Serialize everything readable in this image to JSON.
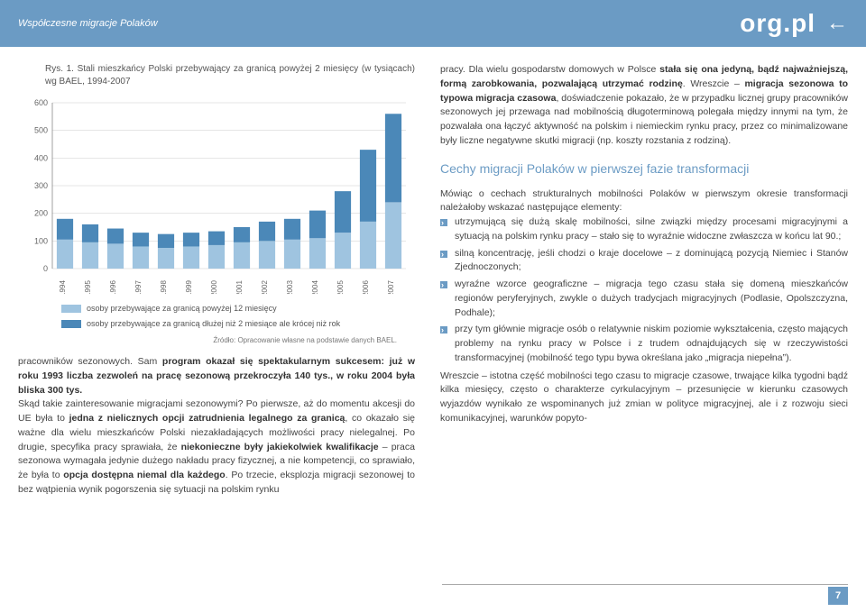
{
  "header": {
    "left": "Współczesne migracje Polaków",
    "logo": "org.pl",
    "arrow": "←"
  },
  "figure": {
    "caption_prefix": "Rys. 1.",
    "caption": "Stali mieszkańcy Polski przebywający za granicą powyżej 2 miesięcy (w tysiącach) wg BAEL, 1994-2007",
    "source": "Źródło: Opracowanie własne na podstawie danych BAEL."
  },
  "chart": {
    "type": "stacked-bar",
    "ylim": [
      0,
      600
    ],
    "ytick_step": 100,
    "yticks": [
      0,
      100,
      200,
      300,
      400,
      500,
      600
    ],
    "years": [
      "1994",
      "1995",
      "1996",
      "1997",
      "1998",
      "1999",
      "2000",
      "2001",
      "2002",
      "2003",
      "2004",
      "2005",
      "2006",
      "2007"
    ],
    "series_bottom": {
      "label": "osoby przebywające za granicą powyżej 12 miesięcy",
      "color": "#9fc4e0"
    },
    "series_top": {
      "label": "osoby przebywające za granicą dłużej niż 2 miesiące ale krócej niż rok",
      "color": "#4b88b8"
    },
    "values_bottom": [
      105,
      95,
      90,
      80,
      75,
      80,
      85,
      95,
      100,
      105,
      110,
      130,
      170,
      240
    ],
    "values_top": [
      75,
      65,
      55,
      50,
      50,
      50,
      50,
      55,
      70,
      75,
      100,
      150,
      260,
      320
    ],
    "bar_width": 0.65,
    "grid_color": "#cccccc",
    "background_color": "#ffffff",
    "axis_fontsize": 9
  },
  "left_body": {
    "p1a": "pracowników sezonowych. Sam ",
    "p1b": "program okazał się spektakularnym sukcesem: już w roku 1993 liczba zezwoleń na pracę sezonową przekroczyła 140 tys., w roku 2004 była bliska 300 tys.",
    "p2a": "Skąd takie zainteresowanie migracjami sezonowymi? Po pierwsze, aż do momentu akcesji do UE była to ",
    "p2b": "jedna z nielicznych opcji zatrudnienia legalnego za granicą",
    "p2c": ", co okazało się ważne dla wielu mieszkańców Polski niezakładających możliwości pracy nielegalnej. Po drugie, specyfika pracy sprawiała, że ",
    "p2d": "niekonieczne były jakiekolwiek kwalifikacje",
    "p2e": " – praca sezonowa wymagała jedynie dużego nakładu pracy fizycznej, a nie kompetencji, co sprawiało, że była to ",
    "p2f": "opcja dostępna niemal dla każdego",
    "p2g": ". Po trzecie, eksplozja migracji sezonowej to bez wątpienia wynik pogorszenia się sytuacji na polskim rynku"
  },
  "right_body": {
    "p1a": "pracy. Dla wielu gospodarstw domowych w Polsce ",
    "p1b": "stała się ona jedyną, bądź najważniejszą, formą zarobkowania, pozwalającą utrzymać rodzinę",
    "p1c": ". Wreszcie – ",
    "p1d": "migracja sezonowa to typowa migracja czasowa",
    "p1e": ", doświadczenie pokazało, że w przypadku licznej grupy pracowników sezonowych jej przewaga nad mobilnością długoterminową polegała między innymi na tym, że pozwalała ona łączyć aktywność na polskim i niemieckim rynku pracy, przez co minimalizowane były liczne negatywne skutki migracji (np. koszty rozstania z rodziną).",
    "section_title": "Cechy migracji Polaków w pierwszej fazie transformacji",
    "intro": "Mówiąc o cechach strukturalnych mobilności Polaków w pierwszym okresie transformacji należałoby wskazać następujące elementy:",
    "bullets": [
      "utrzymującą się dużą skalę mobilności, silne związki między procesami migracyjnymi a sytuacją na polskim rynku pracy – stało się to wyraźnie widoczne zwłaszcza w końcu lat 90.;",
      "silną koncentrację, jeśli chodzi o kraje docelowe – z dominującą pozycją Niemiec i Stanów Zjednoczonych;",
      "wyraźne wzorce geograficzne – migracja tego czasu stała się domeną mieszkańców regionów peryferyjnych, zwykle o dużych tradycjach migracyjnych (Podlasie, Opolszczyzna, Podhale);",
      "przy tym głównie migracje osób o relatywnie niskim poziomie wykształcenia, często mających problemy na rynku pracy w Polsce i z trudem odnajdujących się w rzeczywistości transformacyjnej (mobilność tego typu bywa określana jako „migracja niepełna”)."
    ],
    "outro": "Wreszcie – istotna część mobilności tego czasu to migracje czasowe, trwające kilka tygodni bądź kilka miesięcy, często o charakterze cyrkulacyjnym – przesunięcie w kierunku czasowych wyjazdów wynikało ze wspominanych już zmian w polityce migracyjnej, ale i z rozwoju sieci komunikacyjnej, warunków popyto-"
  },
  "page_number": "7"
}
